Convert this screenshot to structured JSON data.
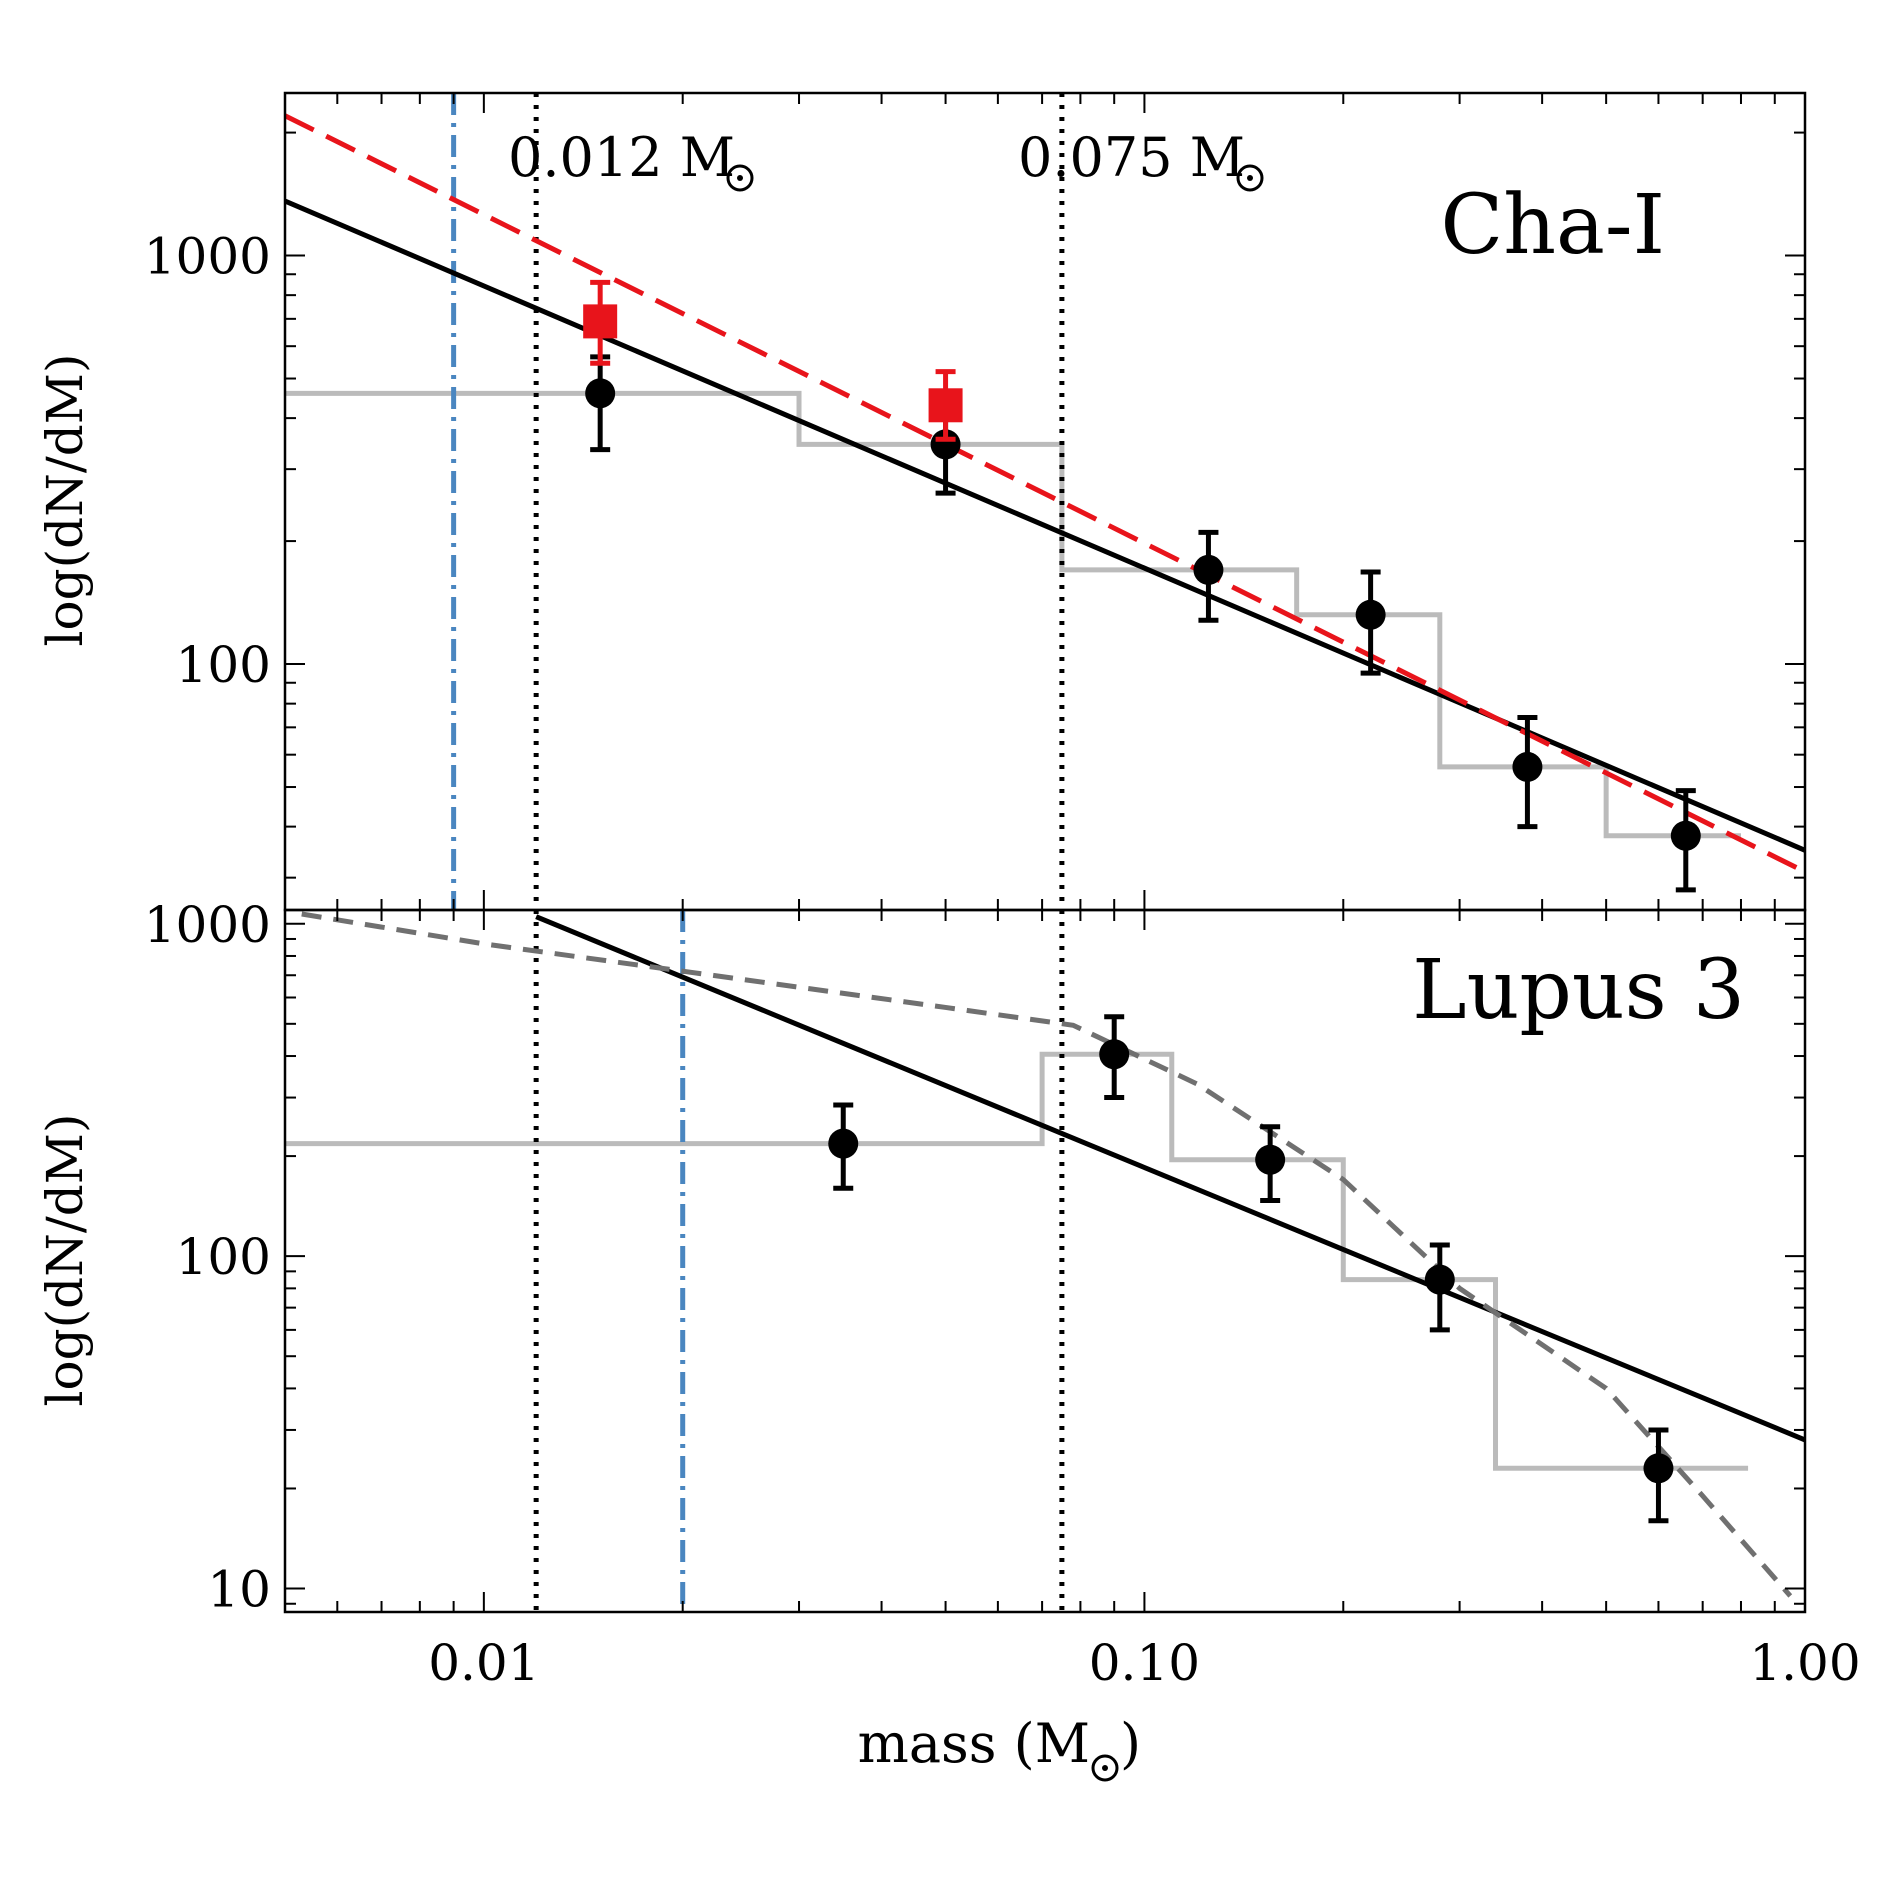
{
  "chart_data": [
    {
      "type": "scatter",
      "panel": "top",
      "title": "Cha-I",
      "xscale": "log",
      "yscale": "log",
      "xlim": [
        0.005,
        1.0
      ],
      "ylim": [
        25,
        2500
      ],
      "ylabel": "log(dN/dM)",
      "yticks": [
        100,
        1000
      ],
      "ytick_labels": [
        "100",
        "1000"
      ],
      "annotations": [
        "0.012 M",
        "0.075 M"
      ],
      "reference_lines": [
        {
          "name": "0.012 Msun",
          "x": 0.012,
          "style": "dotted",
          "color": "#000000"
        },
        {
          "name": "0.075 Msun",
          "x": 0.075,
          "style": "dotted",
          "color": "#000000"
        },
        {
          "name": "completeness limit",
          "x": 0.009,
          "style": "dash-dot",
          "color": "#4a86c0"
        }
      ],
      "histogram": {
        "color": "#bbbbbb",
        "edges": [
          0.005,
          0.03,
          0.075,
          0.17,
          0.28,
          0.5,
          0.8
        ],
        "values": [
          460,
          345,
          170,
          132,
          56,
          38
        ]
      },
      "series": [
        {
          "name": "black points",
          "marker": "circle",
          "color": "#000000",
          "x": [
            0.015,
            0.05,
            0.125,
            0.22,
            0.38,
            0.66
          ],
          "y": [
            460,
            345,
            170,
            132,
            56,
            38
          ],
          "yerr_low": [
            335,
            262,
            128,
            95,
            40,
            28
          ],
          "yerr_high": [
            565,
            425,
            210,
            168,
            74,
            49
          ]
        },
        {
          "name": "red points",
          "marker": "square",
          "color": "#e8141b",
          "x": [
            0.015,
            0.05
          ],
          "y": [
            690,
            430
          ],
          "yerr_low": [
            545,
            355
          ],
          "yerr_high": [
            860,
            520
          ]
        }
      ],
      "fits": [
        {
          "name": "black power-law fit",
          "style": "solid",
          "color": "#000000",
          "x": [
            0.005,
            1.0
          ],
          "y": [
            1360,
            35
          ]
        },
        {
          "name": "red power-law fit",
          "style": "dashed",
          "color": "#e8141b",
          "x": [
            0.005,
            1.0
          ],
          "y": [
            2200,
            31
          ]
        }
      ]
    },
    {
      "type": "scatter",
      "panel": "bottom",
      "title": "Lupus 3",
      "xscale": "log",
      "yscale": "log",
      "xlim": [
        0.005,
        1.0
      ],
      "ylim": [
        8.5,
        1100
      ],
      "xlabel": "mass (M",
      "ylabel": "log(dN/dM)",
      "xticks": [
        0.01,
        0.1,
        1.0
      ],
      "xtick_labels": [
        "0.01",
        "0.10",
        "1.00"
      ],
      "yticks": [
        10,
        100,
        1000
      ],
      "ytick_labels": [
        "10",
        "100",
        "1000"
      ],
      "reference_lines": [
        {
          "name": "0.012 Msun",
          "x": 0.012,
          "style": "dotted",
          "color": "#000000"
        },
        {
          "name": "0.075 Msun",
          "x": 0.075,
          "style": "dotted",
          "color": "#000000"
        },
        {
          "name": "completeness limit",
          "x": 0.02,
          "style": "dash-dot",
          "color": "#4a86c0"
        }
      ],
      "histogram": {
        "color": "#bbbbbb",
        "edges": [
          0.005,
          0.07,
          0.11,
          0.2,
          0.34,
          0.82
        ],
        "values": [
          218,
          405,
          195,
          85,
          23
        ]
      },
      "series": [
        {
          "name": "black points",
          "marker": "circle",
          "color": "#000000",
          "x": [
            0.035,
            0.09,
            0.155,
            0.28,
            0.6
          ],
          "y": [
            218,
            405,
            195,
            85,
            23
          ],
          "yerr_low": [
            160,
            300,
            147,
            60,
            16
          ],
          "yerr_high": [
            285,
            525,
            245,
            108,
            30
          ]
        }
      ],
      "fits": [
        {
          "name": "black power-law fit",
          "style": "solid",
          "color": "#000000",
          "x": [
            0.012,
            1.0
          ],
          "y": [
            1050,
            28
          ]
        },
        {
          "name": "model curve",
          "style": "dashed",
          "color": "#707070",
          "x": [
            0.0053,
            0.01,
            0.02,
            0.05,
            0.078,
            0.12,
            0.2,
            0.3,
            0.5,
            0.7,
            0.95
          ],
          "y": [
            1070,
            870,
            720,
            560,
            495,
            330,
            170,
            80,
            40,
            19,
            9.5
          ]
        }
      ]
    }
  ]
}
